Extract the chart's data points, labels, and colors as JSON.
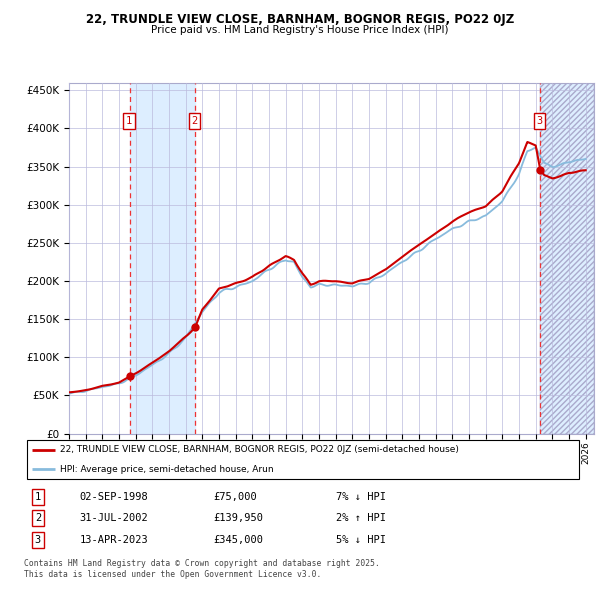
{
  "title_line1": "22, TRUNDLE VIEW CLOSE, BARNHAM, BOGNOR REGIS, PO22 0JZ",
  "title_line2": "Price paid vs. HM Land Registry's House Price Index (HPI)",
  "purchases": [
    {
      "date_num": 1998.67,
      "price": 75000,
      "label": "1",
      "date_str": "02-SEP-1998",
      "pct": "7%",
      "dir": "↓"
    },
    {
      "date_num": 2002.58,
      "price": 139950,
      "label": "2",
      "date_str": "31-JUL-2002",
      "pct": "2%",
      "dir": "↑"
    },
    {
      "date_num": 2023.28,
      "price": 345000,
      "label": "3",
      "date_str": "13-APR-2023",
      "pct": "5%",
      "dir": "↓"
    }
  ],
  "legend_red": "22, TRUNDLE VIEW CLOSE, BARNHAM, BOGNOR REGIS, PO22 0JZ (semi-detached house)",
  "legend_blue": "HPI: Average price, semi-detached house, Arun",
  "footer": "Contains HM Land Registry data © Crown copyright and database right 2025.\nThis data is licensed under the Open Government Licence v3.0.",
  "red_color": "#cc0000",
  "blue_color": "#88bbdd",
  "shading_color": "#ddeeff",
  "grid_color": "#bbbbdd",
  "ymax": 460000,
  "ymin": 0,
  "xmin": 1995.0,
  "xmax": 2026.5,
  "hpi_knots": [
    [
      1995.0,
      53000
    ],
    [
      1996.0,
      56000
    ],
    [
      1997.0,
      61000
    ],
    [
      1998.0,
      66000
    ],
    [
      1999.0,
      76000
    ],
    [
      2000.0,
      90000
    ],
    [
      2001.0,
      105000
    ],
    [
      2002.0,
      125000
    ],
    [
      2003.0,
      160000
    ],
    [
      2004.0,
      185000
    ],
    [
      2005.0,
      192000
    ],
    [
      2006.0,
      200000
    ],
    [
      2007.0,
      215000
    ],
    [
      2008.0,
      228000
    ],
    [
      2008.5,
      225000
    ],
    [
      2009.0,
      205000
    ],
    [
      2009.5,
      192000
    ],
    [
      2010.0,
      195000
    ],
    [
      2011.0,
      195000
    ],
    [
      2012.0,
      193000
    ],
    [
      2013.0,
      198000
    ],
    [
      2014.0,
      210000
    ],
    [
      2015.0,
      225000
    ],
    [
      2016.0,
      240000
    ],
    [
      2017.0,
      255000
    ],
    [
      2018.0,
      268000
    ],
    [
      2019.0,
      278000
    ],
    [
      2020.0,
      285000
    ],
    [
      2021.0,
      305000
    ],
    [
      2022.0,
      340000
    ],
    [
      2022.5,
      370000
    ],
    [
      2023.0,
      375000
    ],
    [
      2023.5,
      355000
    ],
    [
      2024.0,
      350000
    ],
    [
      2024.5,
      352000
    ],
    [
      2025.0,
      356000
    ],
    [
      2026.0,
      360000
    ]
  ],
  "red_knots": [
    [
      1995.0,
      54000
    ],
    [
      1996.0,
      57000
    ],
    [
      1997.0,
      62000
    ],
    [
      1998.0,
      67000
    ],
    [
      1998.67,
      75000
    ],
    [
      1999.0,
      79000
    ],
    [
      2000.0,
      93000
    ],
    [
      2001.0,
      108000
    ],
    [
      2002.0,
      127000
    ],
    [
      2002.58,
      139950
    ],
    [
      2003.0,
      162000
    ],
    [
      2004.0,
      190000
    ],
    [
      2005.0,
      197000
    ],
    [
      2006.0,
      205000
    ],
    [
      2007.0,
      220000
    ],
    [
      2008.0,
      232000
    ],
    [
      2008.5,
      228000
    ],
    [
      2009.0,
      210000
    ],
    [
      2009.5,
      195000
    ],
    [
      2010.0,
      200000
    ],
    [
      2011.0,
      200000
    ],
    [
      2012.0,
      197000
    ],
    [
      2013.0,
      203000
    ],
    [
      2014.0,
      215000
    ],
    [
      2015.0,
      232000
    ],
    [
      2016.0,
      248000
    ],
    [
      2017.0,
      262000
    ],
    [
      2018.0,
      278000
    ],
    [
      2019.0,
      290000
    ],
    [
      2020.0,
      298000
    ],
    [
      2021.0,
      318000
    ],
    [
      2022.0,
      355000
    ],
    [
      2022.5,
      382000
    ],
    [
      2023.0,
      378000
    ],
    [
      2023.28,
      345000
    ],
    [
      2023.5,
      338000
    ],
    [
      2024.0,
      335000
    ],
    [
      2024.5,
      337000
    ],
    [
      2025.0,
      342000
    ],
    [
      2026.0,
      345000
    ]
  ]
}
